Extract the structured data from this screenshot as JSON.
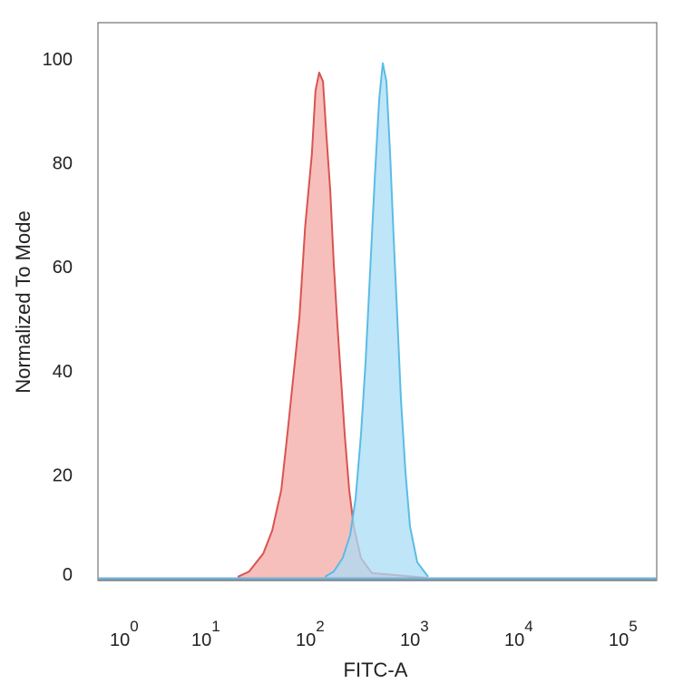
{
  "chart_data": {
    "type": "area",
    "xlabel": "FITC-A",
    "ylabel": "Normalized To Mode",
    "x_scale": "log",
    "xlim": [
      0.7,
      250000
    ],
    "ylim": [
      0,
      100
    ],
    "x_ticks": [
      {
        "base": "10",
        "exp": "0",
        "value": 1
      },
      {
        "base": "10",
        "exp": "1",
        "value": 10
      },
      {
        "base": "10",
        "exp": "2",
        "value": 100
      },
      {
        "base": "10",
        "exp": "3",
        "value": 1000
      },
      {
        "base": "10",
        "exp": "4",
        "value": 10000
      },
      {
        "base": "10",
        "exp": "5",
        "value": 100000
      }
    ],
    "y_ticks": [
      0,
      20,
      40,
      60,
      80,
      100
    ],
    "grid": false,
    "series": [
      {
        "color": "#d9534f",
        "fill": "#f4a9a6",
        "x": [
          21,
          27,
          37,
          45,
          55,
          64,
          74,
          82,
          93,
          108,
          117,
          127,
          138,
          149,
          162,
          175,
          190,
          206,
          223,
          246,
          272,
          319,
          406,
          1350
        ],
        "y": [
          0.2,
          1.2,
          4.7,
          9.1,
          16.9,
          29.1,
          41.4,
          50.1,
          67.5,
          81.5,
          93.7,
          97.2,
          95.5,
          85,
          74.5,
          60.6,
          48.3,
          37.9,
          27.4,
          16.9,
          9.9,
          3.8,
          0.9,
          0
        ]
      },
      {
        "color": "#5bbce4",
        "fill": "#a9dcf5",
        "x": [
          144,
          175,
          213,
          251,
          283,
          319,
          353,
          390,
          431,
          477,
          516,
          560,
          607,
          656,
          711,
          771,
          852,
          941,
          1105,
          1405
        ],
        "y": [
          0.2,
          1.2,
          3.8,
          8.2,
          15.2,
          27.4,
          41.4,
          58.8,
          76.3,
          92,
          99,
          95.5,
          81.5,
          65.8,
          50.1,
          34.4,
          20.4,
          9.9,
          3,
          0.2
        ]
      }
    ]
  }
}
